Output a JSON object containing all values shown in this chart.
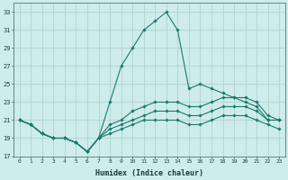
{
  "xlabel": "Humidex (Indice chaleur)",
  "background_color": "#ceecea",
  "grid_color": "#aed4d0",
  "line_color": "#1a7a6e",
  "xlim": [
    -0.5,
    23.5
  ],
  "ylim": [
    17,
    34
  ],
  "yticks": [
    17,
    19,
    21,
    23,
    25,
    27,
    29,
    31,
    33
  ],
  "xticks": [
    0,
    1,
    2,
    3,
    4,
    5,
    6,
    7,
    8,
    9,
    10,
    11,
    12,
    13,
    14,
    15,
    16,
    17,
    18,
    19,
    20,
    21,
    22,
    23
  ],
  "series": [
    [
      21.0,
      20.5,
      19.5,
      19.0,
      19.0,
      18.5,
      17.5,
      19.0,
      23.0,
      27.0,
      29.0,
      31.0,
      32.0,
      33.0,
      31.0,
      24.5,
      25.0,
      24.5,
      24.0,
      23.5,
      23.0,
      22.5,
      21.0,
      21.0
    ],
    [
      21.0,
      20.5,
      19.5,
      19.0,
      19.0,
      18.5,
      17.5,
      19.0,
      20.5,
      21.0,
      22.0,
      22.5,
      23.0,
      23.0,
      23.0,
      22.5,
      22.5,
      23.0,
      23.5,
      23.5,
      23.5,
      23.0,
      21.5,
      21.0
    ],
    [
      21.0,
      20.5,
      19.5,
      19.0,
      19.0,
      18.5,
      17.5,
      19.0,
      20.0,
      20.5,
      21.0,
      21.5,
      22.0,
      22.0,
      22.0,
      21.5,
      21.5,
      22.0,
      22.5,
      22.5,
      22.5,
      22.0,
      21.0,
      21.0
    ],
    [
      21.0,
      20.5,
      19.5,
      19.0,
      19.0,
      18.5,
      17.5,
      19.0,
      19.5,
      20.0,
      20.5,
      21.0,
      21.0,
      21.0,
      21.0,
      20.5,
      20.5,
      21.0,
      21.5,
      21.5,
      21.5,
      21.0,
      20.5,
      20.0
    ]
  ]
}
